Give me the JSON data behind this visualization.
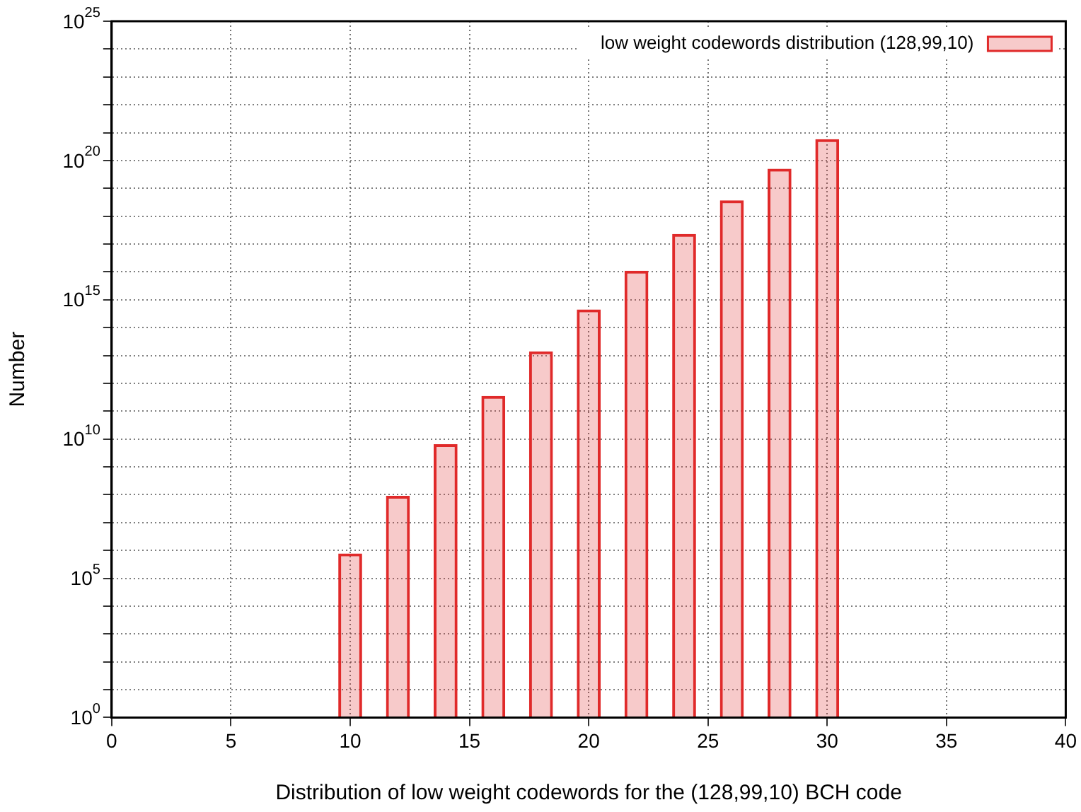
{
  "chart_data": {
    "type": "bar",
    "xlabel": "Distribution of low weight codewords for the (128,99,10) BCH code",
    "ylabel": "Number",
    "x": [
      10,
      12,
      14,
      16,
      18,
      20,
      22,
      24,
      26,
      28,
      30
    ],
    "series": [
      {
        "name": "low weight codewords distribution (128,99,10)",
        "color": "#e02a2a",
        "values": [
          780000.0,
          91000000.0,
          6500000000.0,
          350000000000.0,
          14000000000000.0,
          450000000000000.0,
          1.1e+16,
          2.3e+17,
          3.7e+18,
          5.1e+19,
          5.8e+20
        ]
      }
    ],
    "xlim": [
      0,
      40
    ],
    "xticks": [
      0,
      5,
      10,
      15,
      20,
      25,
      30,
      35,
      40
    ],
    "ylim": [
      1,
      1e+25
    ],
    "yticks": [
      {
        "value": 1,
        "label": "10$^{0}$"
      },
      {
        "value": 10.0,
        "label": null
      },
      {
        "value": 100.0,
        "label": null
      },
      {
        "value": 1000.0,
        "label": null
      },
      {
        "value": 10000.0,
        "label": null
      },
      {
        "value": 100000.0,
        "label": "10$^{5}$"
      },
      {
        "value": 1000000.0,
        "label": null
      },
      {
        "value": 10000000.0,
        "label": null
      },
      {
        "value": 100000000.0,
        "label": null
      },
      {
        "value": 1000000000.0,
        "label": null
      },
      {
        "value": 10000000000.0,
        "label": "10$^{10}$"
      },
      {
        "value": 100000000000.0,
        "label": null
      },
      {
        "value": 1000000000000.0,
        "label": null
      },
      {
        "value": 10000000000000.0,
        "label": null
      },
      {
        "value": 100000000000000.0,
        "label": null
      },
      {
        "value": 1000000000000000.0,
        "label": "10$^{15}$"
      },
      {
        "value": 1e+16,
        "label": null
      },
      {
        "value": 1e+17,
        "label": null
      },
      {
        "value": 1e+18,
        "label": null
      },
      {
        "value": 1e+19,
        "label": null
      },
      {
        "value": 1e+20,
        "label": "10$^{20}$"
      },
      {
        "value": 1e+21,
        "label": null
      },
      {
        "value": 1e+22,
        "label": null
      },
      {
        "value": 1e+23,
        "label": null
      },
      {
        "value": 1e+24,
        "label": null
      },
      {
        "value": 1e+25,
        "label": "10$^{25}$"
      }
    ],
    "log": "y",
    "grid": true,
    "legend": "top right"
  }
}
